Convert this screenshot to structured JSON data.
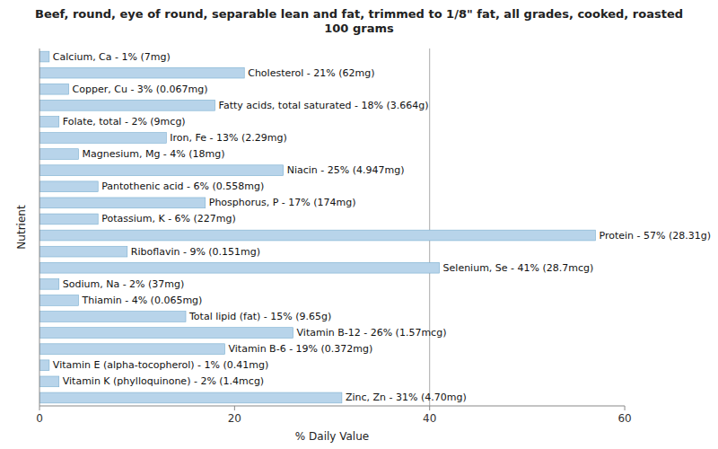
{
  "chart_data": {
    "type": "bar",
    "orientation": "horizontal",
    "title": "Beef, round, eye of round, separable lean and fat, trimmed to 1/8\" fat, all grades, cooked, roasted\n100 grams",
    "x_label": "% Daily Value",
    "y_label": "Nutrient",
    "categories": [
      "Calcium, Ca - 1% (7mg)",
      "Cholesterol - 21% (62mg)",
      "Copper, Cu - 3% (0.067mg)",
      "Fatty acids, total saturated - 18% (3.664g)",
      "Folate, total - 2% (9mcg)",
      "Iron, Fe - 13% (2.29mg)",
      "Magnesium, Mg - 4% (18mg)",
      "Niacin - 25% (4.947mg)",
      "Pantothenic acid - 6% (0.558mg)",
      "Phosphorus, P - 17% (174mg)",
      "Potassium, K - 6% (227mg)",
      "Protein - 57% (28.31g)",
      "Riboflavin - 9% (0.151mg)",
      "Selenium, Se - 41% (28.7mcg)",
      "Sodium, Na - 2% (37mg)",
      "Thiamin - 4% (0.065mg)",
      "Total lipid (fat) - 15% (9.65g)",
      "Vitamin B-12 - 26% (1.57mcg)",
      "Vitamin B-6 - 19% (0.372mg)",
      "Vitamin E (alpha-tocopherol) - 1% (0.41mg)",
      "Vitamin K (phylloquinone) - 2% (1.4mcg)",
      "Zinc, Zn - 31% (4.70mg)"
    ],
    "values": [
      1,
      21,
      3,
      18,
      2,
      13,
      4,
      25,
      6,
      17,
      6,
      57,
      9,
      41,
      2,
      4,
      15,
      26,
      19,
      1,
      2,
      31
    ],
    "color": "#b8d4ea",
    "xlim": [
      0,
      60
    ],
    "xticks": [
      0,
      20,
      40,
      60
    ],
    "vline": 40,
    "grid": false
  }
}
